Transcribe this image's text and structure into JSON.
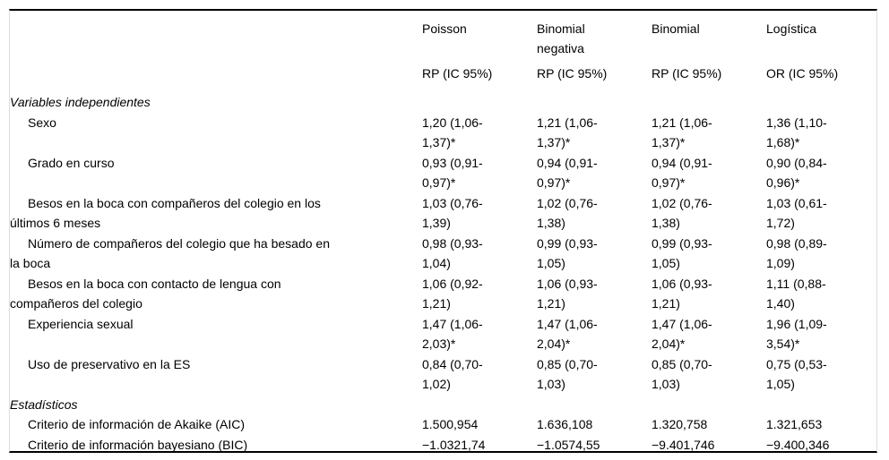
{
  "table": {
    "columns": [
      {
        "model": "Poisson",
        "measure": "RP (IC 95%)"
      },
      {
        "model": "Binomial\nnegativa",
        "measure": "RP (IC 95%)"
      },
      {
        "model": "Binomial",
        "measure": "RP (IC 95%)"
      },
      {
        "model": "Logística",
        "measure": "OR (IC 95%)"
      }
    ],
    "sections": [
      {
        "title": "Variables independientes",
        "rows": [
          {
            "label": "Sexo",
            "values": [
              "1,20 (1,06-\n1,37)*",
              "1,21 (1,06-\n1,37)*",
              "1,21 (1,06-\n1,37)*",
              "1,36 (1,10-\n1,68)*"
            ]
          },
          {
            "label": "Grado en curso",
            "values": [
              "0,93 (0,91-\n0,97)*",
              "0,94 (0,91-\n0,97)*",
              "0,94 (0,91-\n0,97)*",
              "0,90 (0,84-\n0,96)*"
            ]
          },
          {
            "label": "Besos en la boca con compañeros del colegio en los\núltimos 6 meses",
            "values": [
              "1,03 (0,76-\n1,39)",
              "1,02 (0,76-\n1,38)",
              "1,02 (0,76-\n1,38)",
              "1,03 (0,61-\n1,72)"
            ]
          },
          {
            "label": "Número de compañeros del colegio que ha besado en\nla boca",
            "values": [
              "0,98 (0,93-\n1,04)",
              "0,99 (0,93-\n1,05)",
              "0,99 (0,93-\n1,05)",
              "0,98 (0,89-\n1,09)"
            ]
          },
          {
            "label": "Besos en la boca con contacto de lengua con\ncompañeros del colegio",
            "values": [
              "1,06 (0,92-\n1,21)",
              "1,06 (0,93-\n1,21)",
              "1,06 (0,93-\n1,21)",
              "1,11 (0,88-\n1,40)"
            ]
          },
          {
            "label": "Experiencia sexual",
            "values": [
              "1,47 (1,06-\n2,03)*",
              "1,47 (1,06-\n2,04)*",
              "1,47 (1,06-\n2,04)*",
              "1,96 (1,09-\n3,54)*"
            ]
          },
          {
            "label": "Uso de preservativo en la ES",
            "values": [
              "0,84 (0,70-\n1,02)",
              "0,85 (0,70-\n1,03)",
              "0,85 (0,70-\n1,03)",
              "0,75 (0,53-\n1,05)"
            ]
          }
        ]
      },
      {
        "title": "Estadísticos",
        "rows": [
          {
            "label": "Criterio de información de Akaike (AIC)",
            "values": [
              "1.500,954",
              "1.636,108",
              "1.320,758",
              "1.321,653"
            ]
          },
          {
            "label": "Criterio de información bayesiano (BIC)",
            "values": [
              "−1.0321,74",
              "−1.0574,55",
              "−9.401,746",
              "−9.400,346"
            ]
          }
        ]
      }
    ]
  }
}
